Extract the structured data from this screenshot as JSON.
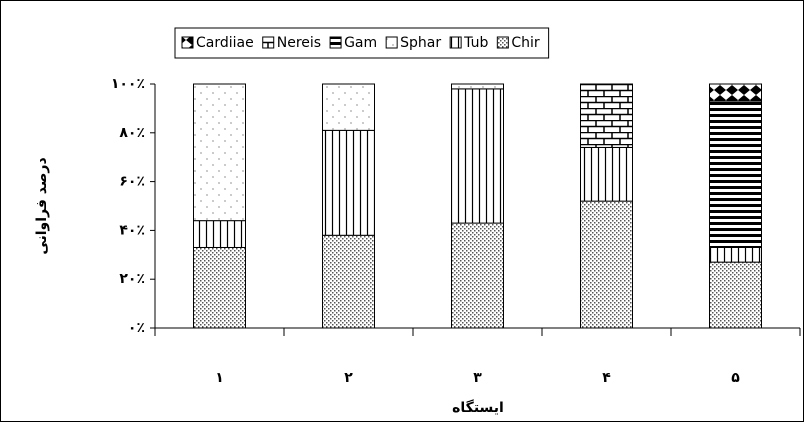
{
  "chart_data": {
    "type": "stacked_bar",
    "categories": [
      "۱",
      "۲",
      "۳",
      "۴",
      "۵"
    ],
    "xlabel": "ایستگاه",
    "ylabel": "درصد فراوانی",
    "series": [
      {
        "name": "Cardiiae",
        "values": [
          0,
          0,
          0,
          0,
          7
        ]
      },
      {
        "name": "Nereis",
        "values": [
          0,
          0,
          0,
          26,
          0
        ]
      },
      {
        "name": "Gam",
        "values": [
          0,
          0,
          0,
          0,
          60
        ]
      },
      {
        "name": "Sphar",
        "values": [
          56,
          19,
          2,
          0,
          0
        ]
      },
      {
        "name": "Tub",
        "values": [
          11,
          43,
          55,
          22,
          6
        ]
      },
      {
        "name": "Chir",
        "values": [
          33,
          38,
          43,
          52,
          27
        ]
      }
    ],
    "ylim": [
      0,
      100
    ],
    "yticks": [
      {
        "value": 0,
        "label": "۰٪"
      },
      {
        "value": 20,
        "label": "۲۰٪"
      },
      {
        "value": 40,
        "label": "۴۰٪"
      },
      {
        "value": 60,
        "label": "۶۰٪"
      },
      {
        "value": 80,
        "label": "۸۰٪"
      },
      {
        "value": 100,
        "label": "۱۰۰٪"
      }
    ]
  }
}
